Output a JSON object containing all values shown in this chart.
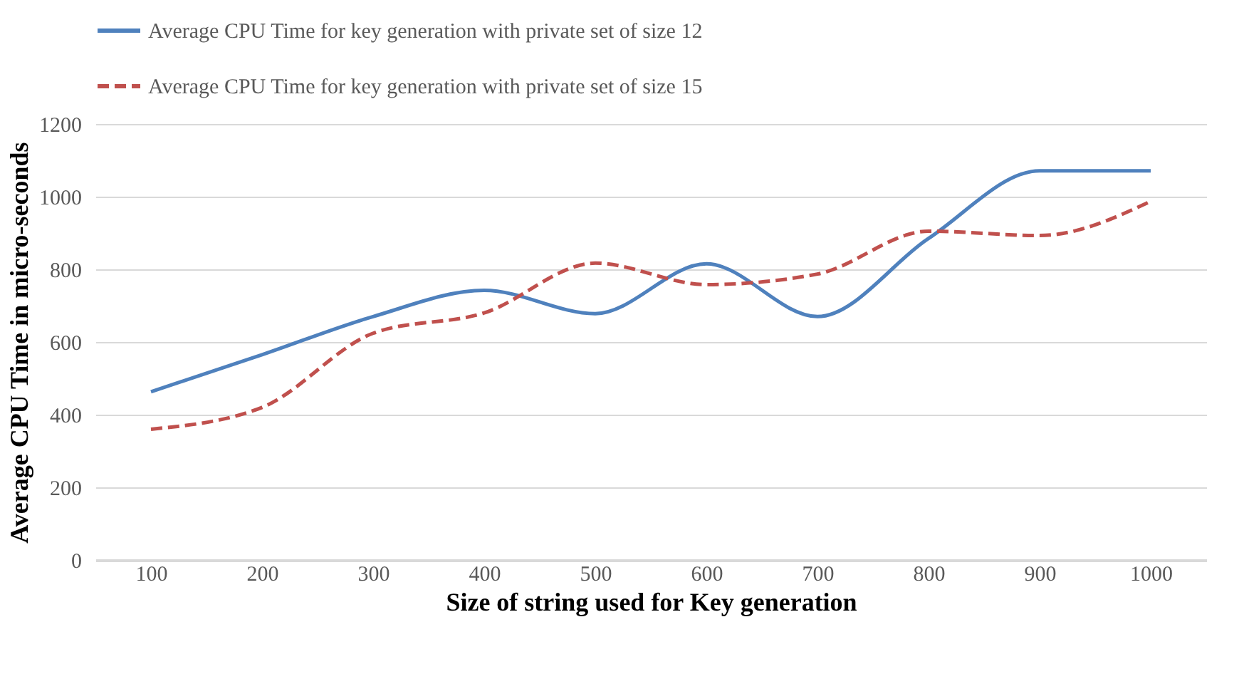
{
  "chart_data": {
    "type": "line",
    "xlabel": "Size of string used for Key generation",
    "ylabel": "Average CPU Time in micro-seconds",
    "categories": [
      "100",
      "200",
      "300",
      "400",
      "500",
      "600",
      "700",
      "800",
      "900",
      "1000"
    ],
    "series": [
      {
        "name": "Average CPU Time for key generation with private set of size 12",
        "color": "#4f81bd",
        "line_style": "solid",
        "values": [
          463,
          565,
          670,
          742,
          678,
          815,
          670,
          885,
          1071,
          1071
        ]
      },
      {
        "name": "Average CPU Time for key generation with private set of size 15",
        "color": "#c0504d",
        "line_style": "dashed",
        "values": [
          360,
          420,
          624,
          680,
          817,
          758,
          787,
          905,
          893,
          987
        ]
      }
    ],
    "ylim": [
      0,
      1200
    ],
    "yticks": [
      0,
      200,
      400,
      600,
      800,
      1000,
      1200
    ],
    "grid": "y",
    "legend": "top",
    "marker": "none"
  }
}
